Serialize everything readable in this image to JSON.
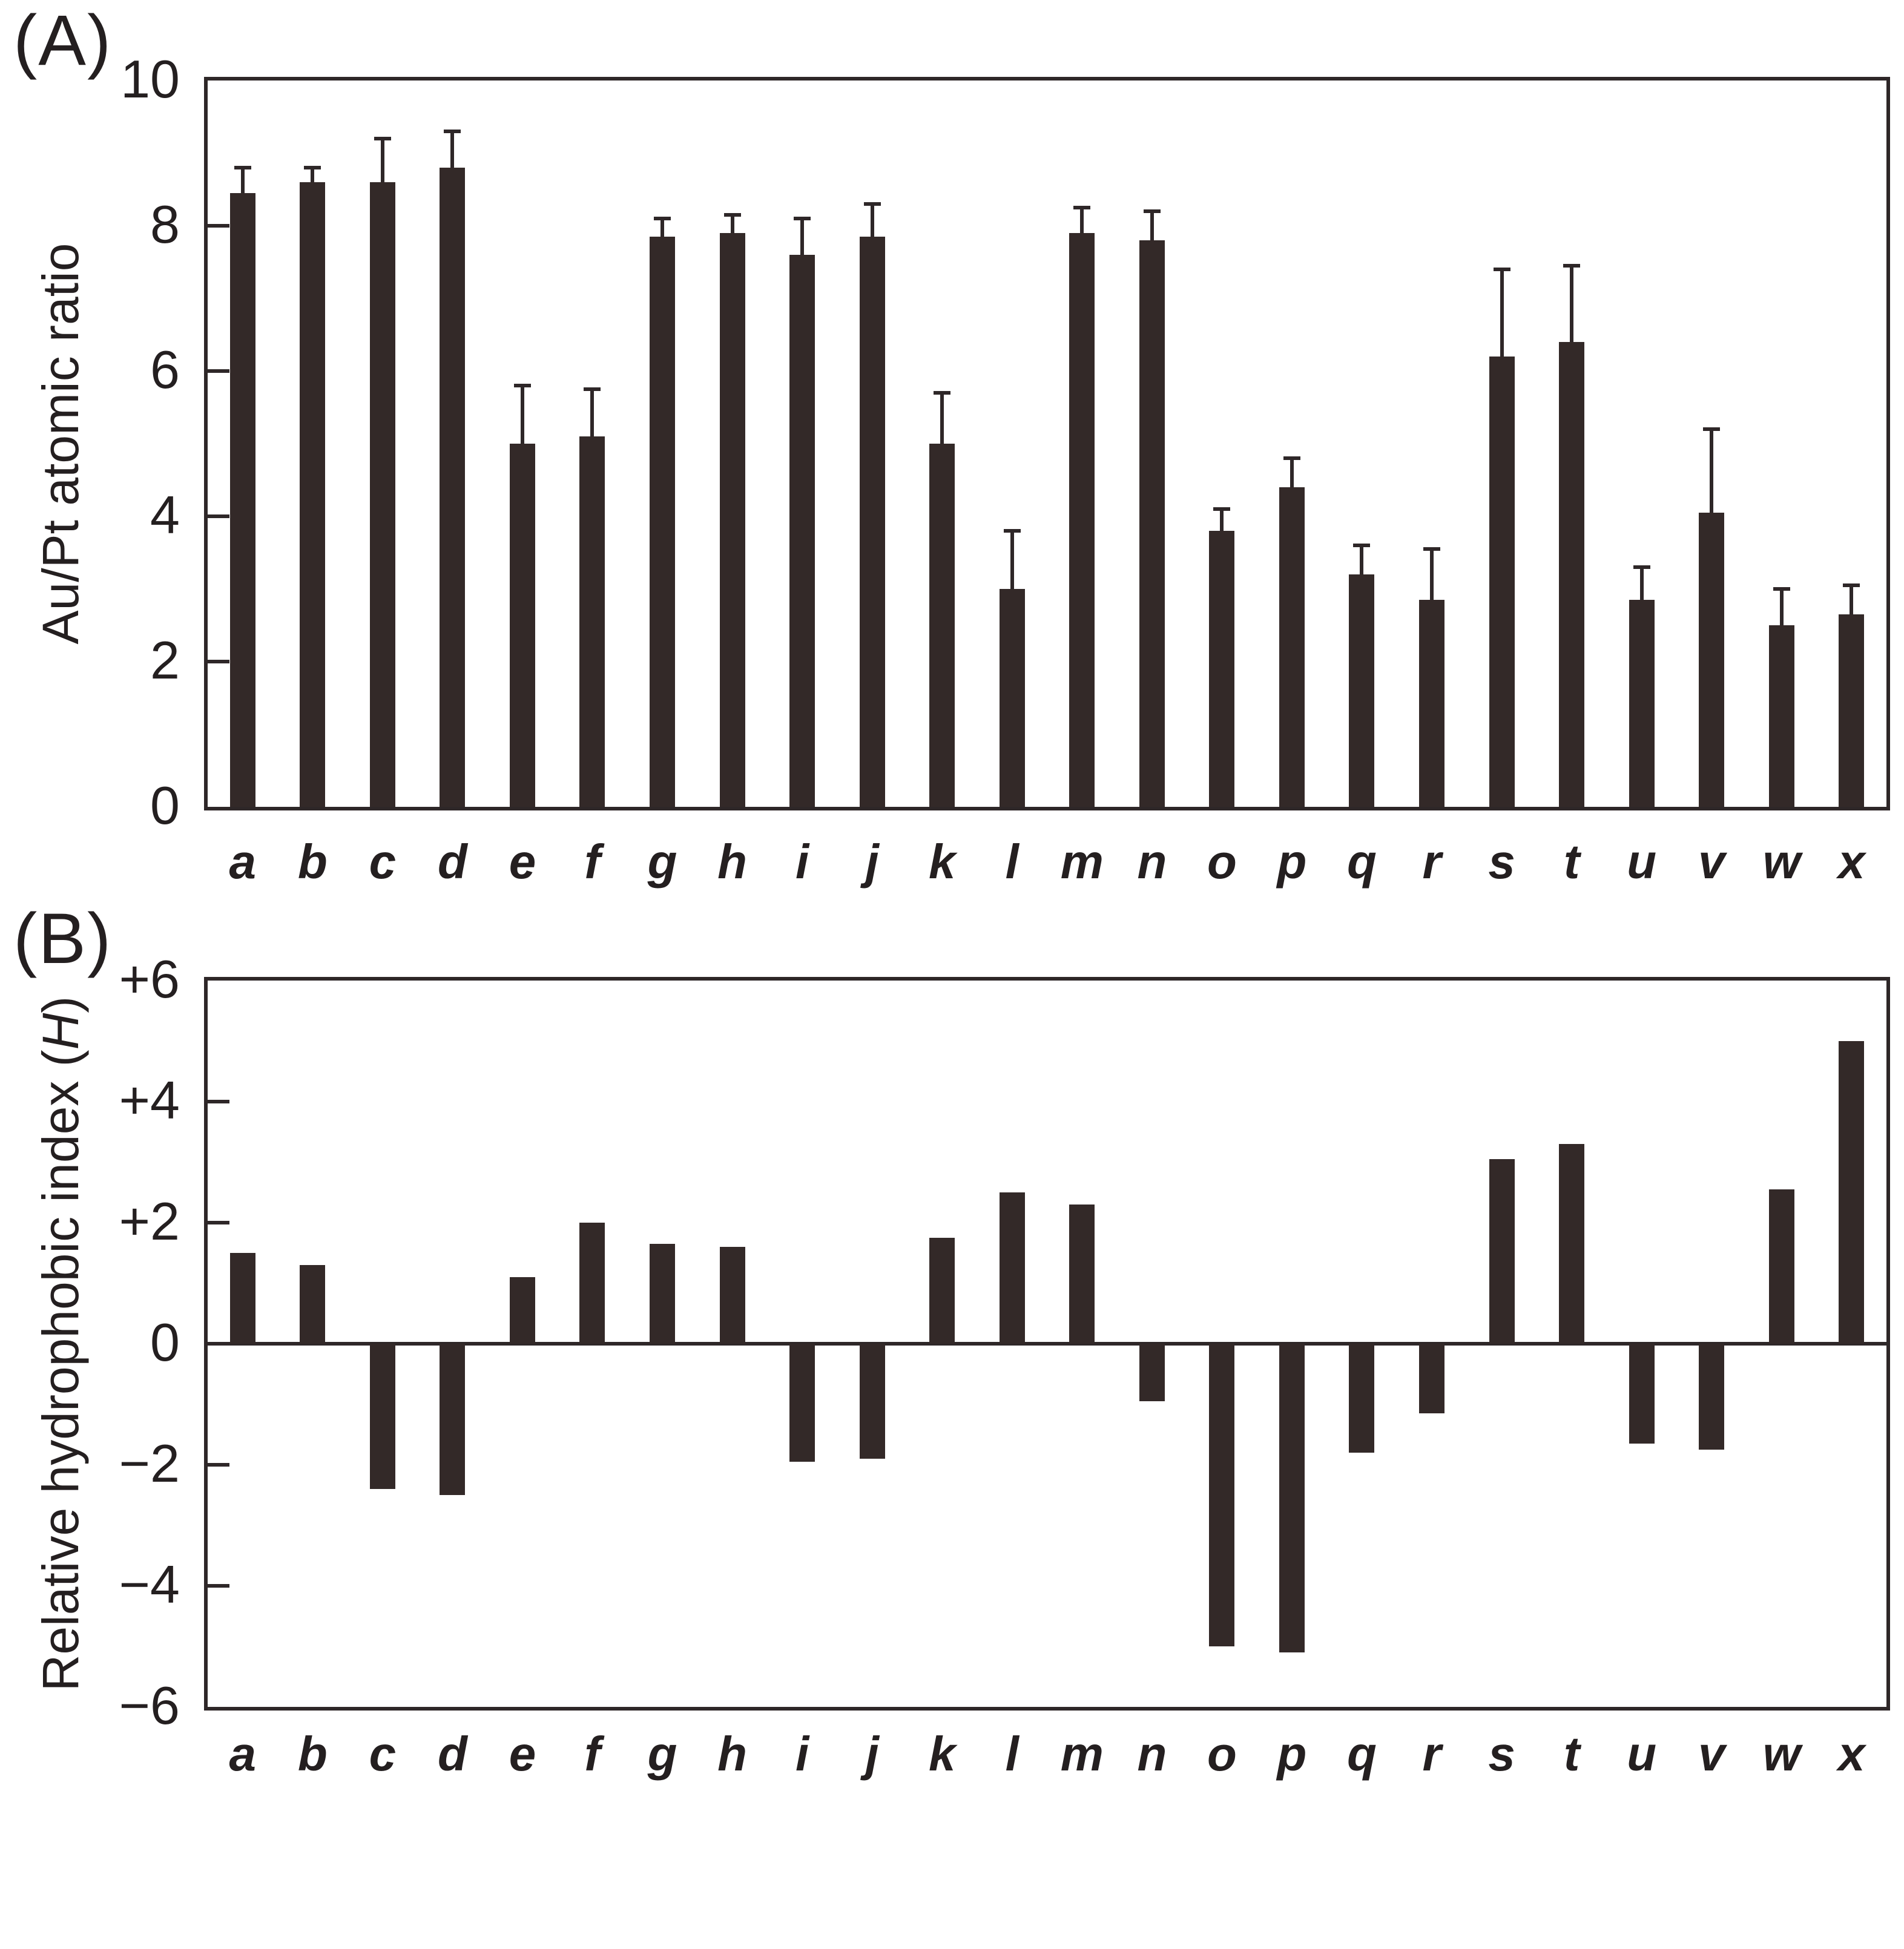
{
  "colors": {
    "bar_fill": "#332928",
    "axis_line": "#2e2728",
    "text": "#241f20",
    "background": "#ffffff"
  },
  "panels": {
    "a": {
      "label": "(A)",
      "y_label": "Au/Pt atomic ratio"
    },
    "b": {
      "label": "(B)",
      "y_label_prefix": "Relative hydrophobic index (",
      "y_label_italic": "H",
      "y_label_suffix": ")"
    }
  },
  "chart_data": [
    {
      "panel": "A",
      "type": "bar",
      "ylabel": "Au/Pt atomic ratio",
      "categories": [
        "a",
        "b",
        "c",
        "d",
        "e",
        "f",
        "g",
        "h",
        "i",
        "j",
        "k",
        "l",
        "m",
        "n",
        "o",
        "p",
        "q",
        "r",
        "s",
        "t",
        "u",
        "v",
        "w",
        "x"
      ],
      "values": [
        8.45,
        8.6,
        8.6,
        8.8,
        5.0,
        5.1,
        7.85,
        7.9,
        7.6,
        7.85,
        5.0,
        3.0,
        7.9,
        7.8,
        3.8,
        4.4,
        3.2,
        2.85,
        6.2,
        6.4,
        2.85,
        4.05,
        2.5,
        2.65
      ],
      "errors_plus": [
        0.35,
        0.2,
        0.6,
        0.5,
        0.8,
        0.65,
        0.25,
        0.25,
        0.5,
        0.45,
        0.7,
        0.8,
        0.35,
        0.4,
        0.3,
        0.4,
        0.4,
        0.7,
        1.2,
        1.05,
        0.45,
        1.15,
        0.5,
        0.4
      ],
      "ylim": [
        0,
        10
      ],
      "grid": false,
      "error_bars": "upper only",
      "yticks": [
        {
          "value": 10,
          "label": "10"
        },
        {
          "value": 8,
          "label": "8"
        },
        {
          "value": 6,
          "label": "6"
        },
        {
          "value": 4,
          "label": "4"
        },
        {
          "value": 2,
          "label": "2"
        },
        {
          "value": 0,
          "label": "0"
        }
      ]
    },
    {
      "panel": "B",
      "type": "bar",
      "ylabel": "Relative hydrophobic index (H)",
      "categories": [
        "a",
        "b",
        "c",
        "d",
        "e",
        "f",
        "g",
        "h",
        "i",
        "j",
        "k",
        "l",
        "m",
        "n",
        "o",
        "p",
        "q",
        "r",
        "s",
        "t",
        "u",
        "v",
        "w",
        "x"
      ],
      "values": [
        1.5,
        1.3,
        -2.4,
        -2.5,
        1.1,
        2.0,
        1.65,
        1.6,
        -1.95,
        -1.9,
        1.75,
        2.5,
        2.3,
        -0.95,
        -5.0,
        -5.1,
        -1.8,
        -1.15,
        3.05,
        3.3,
        -1.65,
        -1.75,
        2.55,
        5.0
      ],
      "ylim": [
        -6,
        6
      ],
      "grid": false,
      "zero_line": true,
      "yticks": [
        {
          "value": 6,
          "label": "+6"
        },
        {
          "value": 4,
          "label": "+4"
        },
        {
          "value": 2,
          "label": "+2"
        },
        {
          "value": 0,
          "label": "0"
        },
        {
          "value": -2,
          "label": "−2"
        },
        {
          "value": -4,
          "label": "−4"
        },
        {
          "value": -6,
          "label": "−6"
        }
      ]
    }
  ]
}
